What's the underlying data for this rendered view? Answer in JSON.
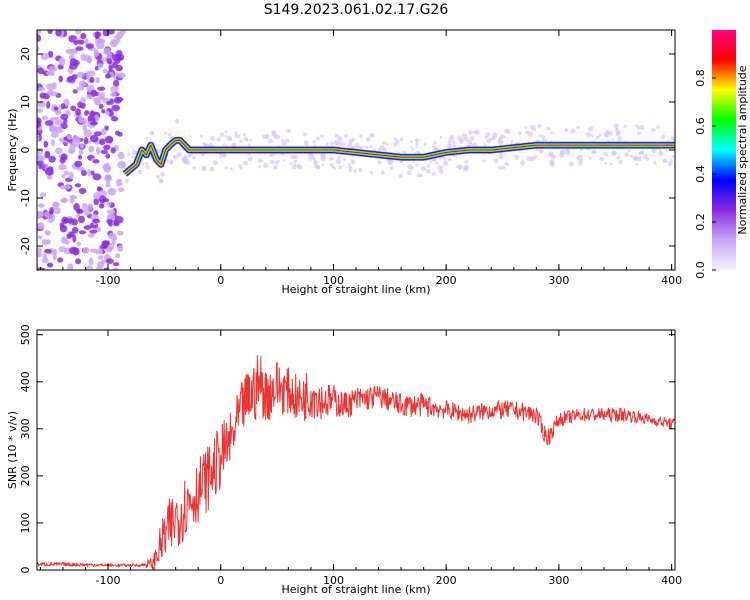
{
  "title": "S149.2023.061.02.17.G26",
  "colormap_stops": [
    "#f4f0ff",
    "#c9a6f5",
    "#8a2be2",
    "#0000ff",
    "#00ffff",
    "#00ff00",
    "#ffff00",
    "#ff0000",
    "#ff007f"
  ],
  "line_color": "#ee3333",
  "chart_data": [
    {
      "type": "heatmap",
      "title": "S149.2023.061.02.17.G26",
      "xlabel": "Height of straight line (km)",
      "ylabel": "Frequency (Hz)",
      "xlim": [
        -163,
        403
      ],
      "ylim": [
        -25,
        25
      ],
      "x_ticks": [
        {
          "value": -100,
          "label": "-100"
        },
        {
          "value": 0,
          "label": "0"
        },
        {
          "value": 100,
          "label": "100"
        },
        {
          "value": 200,
          "label": "200"
        },
        {
          "value": 300,
          "label": "300"
        },
        {
          "value": 400,
          "label": "400"
        }
      ],
      "y_ticks": [
        {
          "value": -20,
          "label": "-20"
        },
        {
          "value": -10,
          "label": "-10"
        },
        {
          "value": 0,
          "label": "0"
        },
        {
          "value": 10,
          "label": "10"
        },
        {
          "value": 20,
          "label": "20"
        }
      ],
      "colorbar": {
        "label": "Normalized spectral amplitude",
        "range": [
          0,
          1
        ],
        "ticks": [
          {
            "value": 0.0,
            "label": "0.0"
          },
          {
            "value": 0.2,
            "label": "0.2"
          },
          {
            "value": 0.4,
            "label": "0.4"
          },
          {
            "value": 0.6,
            "label": "0.6"
          },
          {
            "value": 0.8,
            "label": "0.8"
          }
        ]
      },
      "noise_region_x": [
        -163,
        -87
      ],
      "ridge": {
        "x": [
          -85,
          -80,
          -75,
          -70,
          -66,
          -62,
          -57,
          -53,
          -49,
          -45,
          -40,
          -36,
          -32,
          -28,
          -24,
          0,
          40,
          80,
          100,
          120,
          140,
          160,
          180,
          200,
          220,
          240,
          260,
          280,
          300,
          340,
          403
        ],
        "y": [
          -5,
          -4,
          -3,
          0,
          -1,
          1,
          -2,
          -3,
          0,
          1,
          2,
          2,
          1,
          0,
          0,
          0,
          0,
          0,
          0,
          -0.5,
          -1,
          -1.5,
          -1.5,
          -0.5,
          0,
          0,
          0.5,
          1,
          1,
          1,
          1
        ]
      }
    },
    {
      "type": "line",
      "xlabel": "Height of straight line (km)",
      "ylabel": "SNR (10 * v/v)",
      "xlim": [
        -163,
        403
      ],
      "ylim": [
        0,
        510
      ],
      "x_ticks": [
        {
          "value": -100,
          "label": "-100"
        },
        {
          "value": 0,
          "label": "0"
        },
        {
          "value": 100,
          "label": "100"
        },
        {
          "value": 200,
          "label": "200"
        },
        {
          "value": 300,
          "label": "300"
        },
        {
          "value": 400,
          "label": "400"
        }
      ],
      "y_ticks": [
        {
          "value": 0,
          "label": "0"
        },
        {
          "value": 100,
          "label": "100"
        },
        {
          "value": 200,
          "label": "200"
        },
        {
          "value": 300,
          "label": "300"
        },
        {
          "value": 400,
          "label": "400"
        },
        {
          "value": 500,
          "label": "500"
        }
      ],
      "envelope": {
        "x": [
          -163,
          -140,
          -100,
          -70,
          -60,
          -50,
          -40,
          -30,
          -20,
          -10,
          0,
          10,
          20,
          30,
          35,
          40,
          50,
          60,
          70,
          80,
          90,
          100,
          110,
          120,
          140,
          160,
          180,
          200,
          220,
          240,
          260,
          280,
          285,
          290,
          300,
          320,
          340,
          360,
          380,
          403
        ],
        "mean": [
          12,
          12,
          10,
          10,
          15,
          70,
          110,
          140,
          170,
          200,
          240,
          280,
          350,
          380,
          400,
          370,
          390,
          380,
          360,
          380,
          360,
          360,
          350,
          360,
          370,
          350,
          350,
          340,
          330,
          340,
          340,
          330,
          300,
          280,
          320,
          330,
          330,
          330,
          320,
          310
        ],
        "amplitude": [
          4,
          4,
          3,
          3,
          15,
          60,
          70,
          70,
          70,
          70,
          70,
          60,
          60,
          70,
          70,
          60,
          60,
          50,
          50,
          60,
          40,
          35,
          30,
          30,
          25,
          25,
          25,
          20,
          20,
          20,
          20,
          20,
          20,
          20,
          15,
          15,
          15,
          15,
          12,
          12
        ]
      }
    }
  ]
}
